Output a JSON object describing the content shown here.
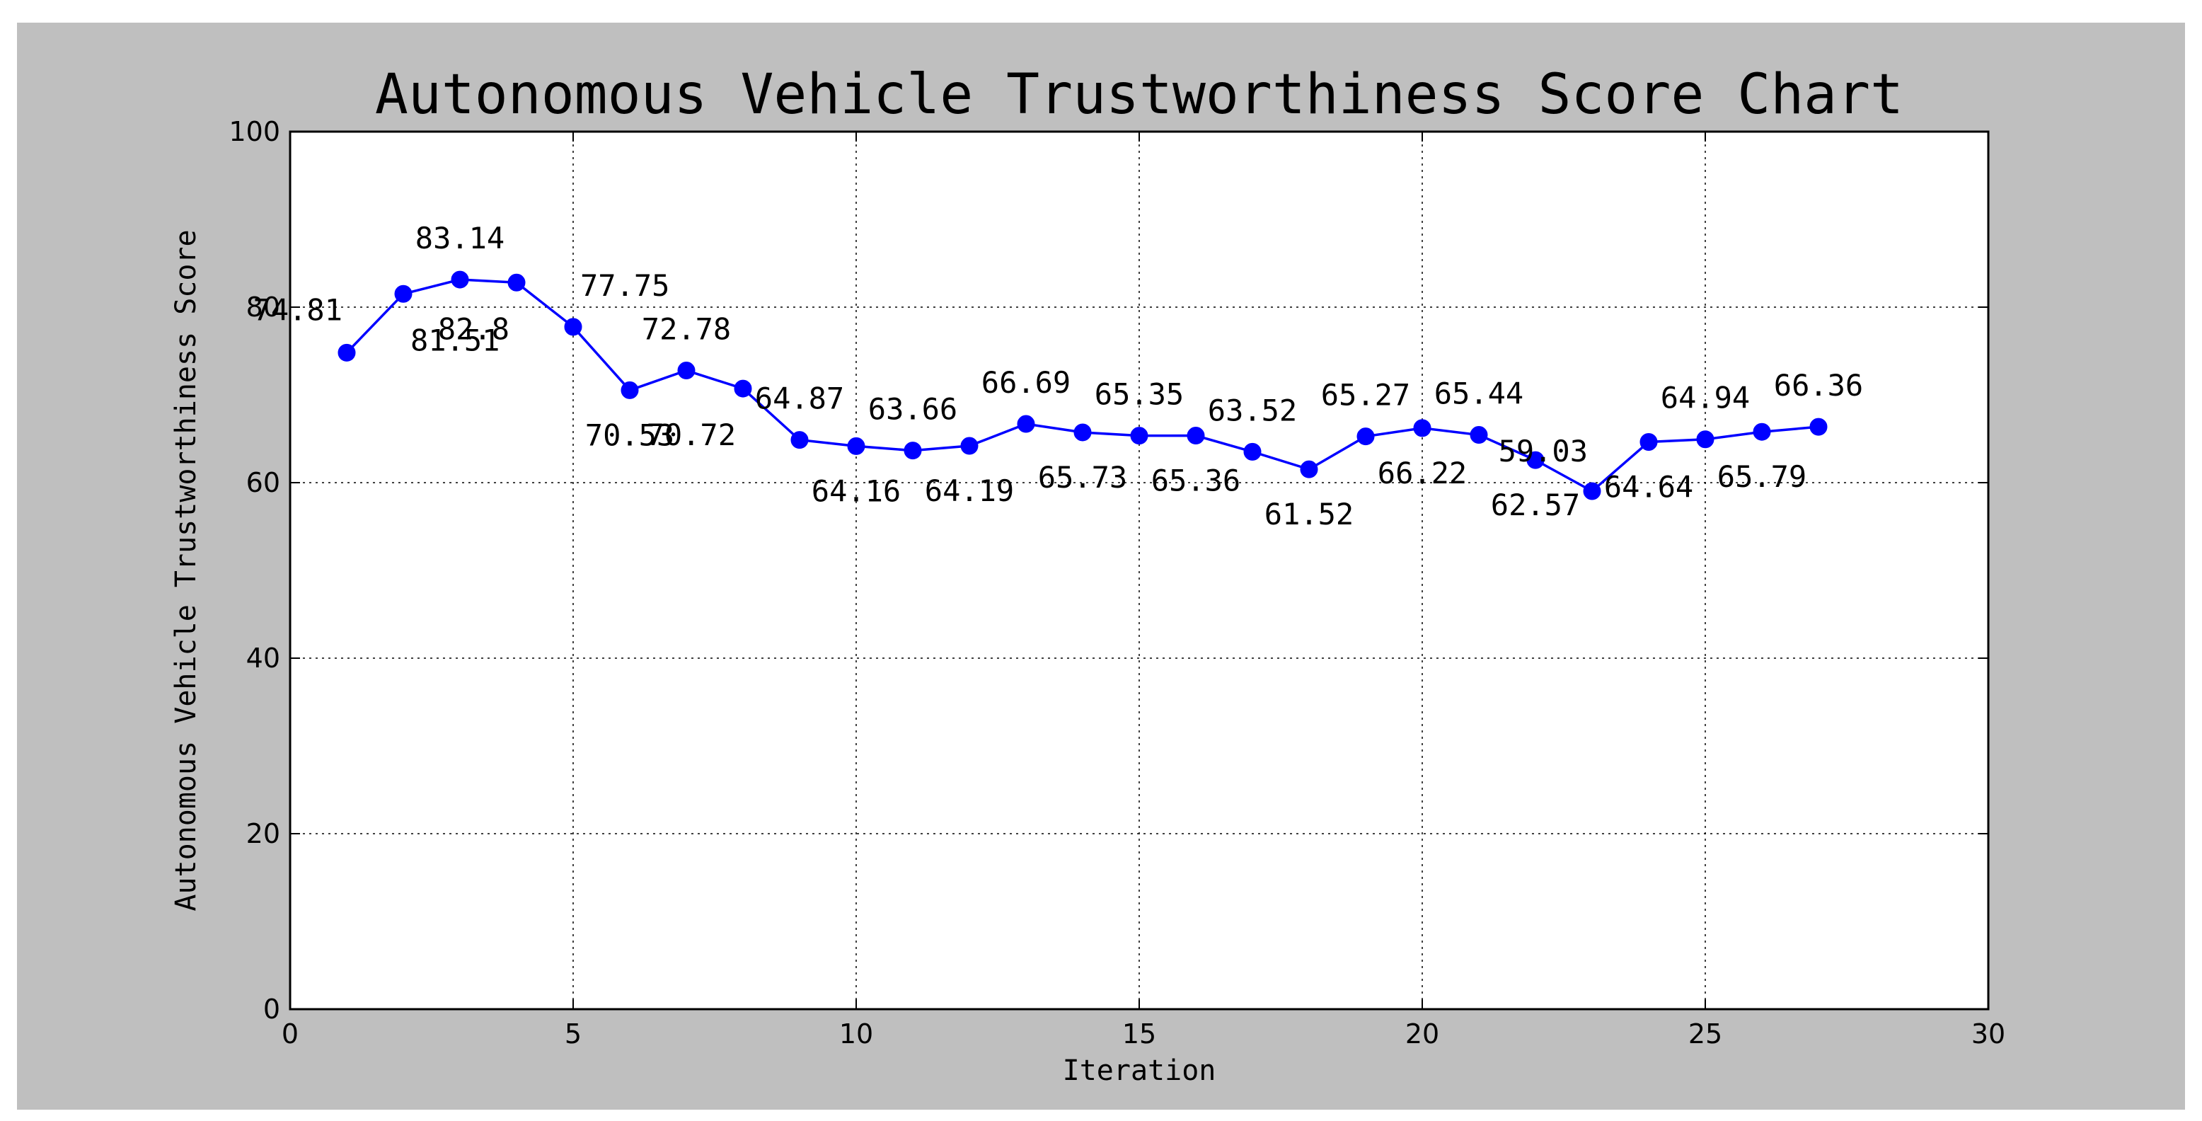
{
  "chart_data": {
    "type": "line",
    "title": "Autonomous Vehicle Trustworthiness Score Chart",
    "xlabel": "Iteration",
    "ylabel": "Autonomous Vehicle Trustworthiness Score",
    "xlim": [
      0,
      30
    ],
    "ylim": [
      0,
      100
    ],
    "xticks": [
      0,
      5,
      10,
      15,
      20,
      25,
      30
    ],
    "yticks": [
      0,
      20,
      40,
      60,
      80,
      100
    ],
    "grid": true,
    "line_color": "#0000ff",
    "marker": "circle",
    "series": [
      {
        "x": [
          1,
          2,
          3,
          4,
          5,
          6,
          7,
          8,
          9,
          10,
          11,
          12,
          13,
          14,
          15,
          16,
          17,
          18,
          19,
          20,
          21,
          22,
          23,
          24,
          25,
          26,
          27
        ],
        "values": [
          74.81,
          81.51,
          83.14,
          82.8,
          77.75,
          70.53,
          72.78,
          70.72,
          64.87,
          64.16,
          63.66,
          64.19,
          66.69,
          65.73,
          65.35,
          65.36,
          63.52,
          61.52,
          65.27,
          66.22,
          65.44,
          62.57,
          59.03,
          64.64,
          64.94,
          65.79,
          66.36
        ]
      }
    ],
    "data_labels": [
      "74.81",
      "81.51",
      "83.14",
      "82.8",
      "77.75",
      "70.53",
      "72.78",
      "70.72",
      "64.87",
      "64.16",
      "63.66",
      "64.19",
      "66.69",
      "65.73",
      "65.35",
      "65.36",
      "63.52",
      "61.52",
      "65.27",
      "66.22",
      "65.44",
      "62.57",
      "59.03",
      "64.64",
      "64.94",
      "65.79",
      "66.36"
    ],
    "label_positions": [
      "left",
      "below-right",
      "above",
      "below-left",
      "above-right",
      "below",
      "above",
      "below-left",
      "above",
      "below",
      "above",
      "below",
      "above",
      "below",
      "above",
      "below",
      "above",
      "below",
      "above",
      "below",
      "above",
      "below",
      "above-left",
      "below",
      "above",
      "below",
      "above"
    ]
  }
}
